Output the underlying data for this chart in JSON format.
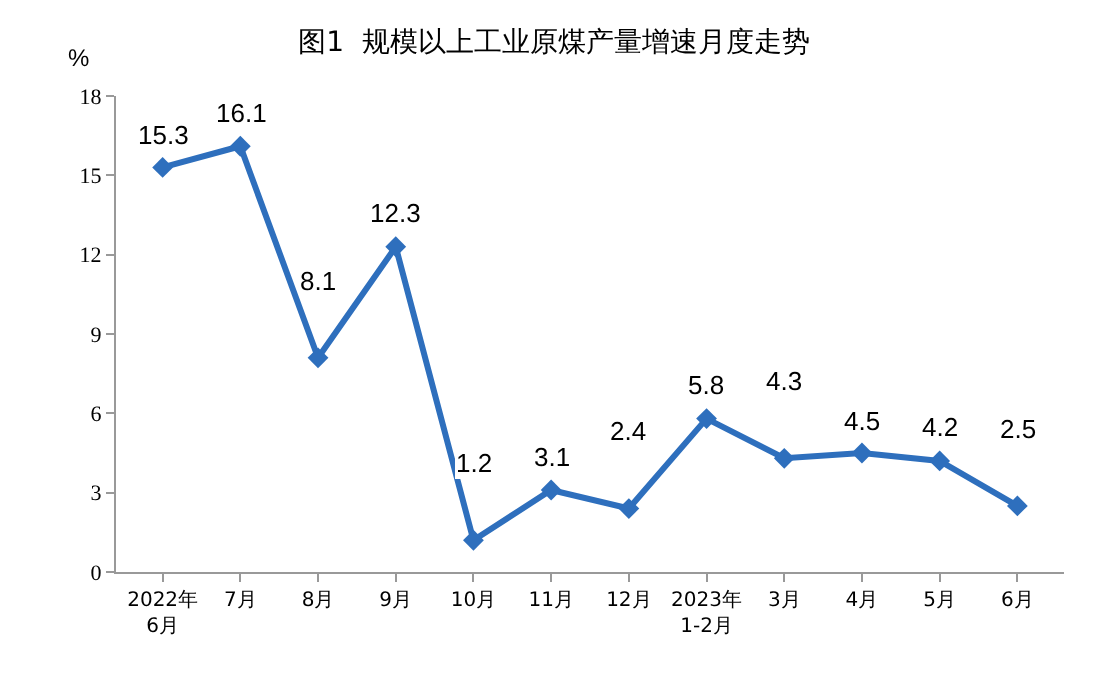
{
  "chart_data": {
    "type": "line",
    "title": "图1  规模以上工业原煤产量增速月度走势",
    "ylabel": "%",
    "categories": [
      "2022年\n6月",
      "7月",
      "8月",
      "9月",
      "10月",
      "11月",
      "12月",
      "2023年\n1-2月",
      "3月",
      "4月",
      "5月",
      "6月"
    ],
    "series": [
      {
        "color": "#2e6fbd",
        "values": [
          15.3,
          16.1,
          8.1,
          12.3,
          1.2,
          3.1,
          2.4,
          5.8,
          4.3,
          4.5,
          4.2,
          2.5
        ]
      }
    ],
    "ylim": [
      0,
      18
    ],
    "yticks": [
      0,
      3,
      6,
      9,
      12,
      15,
      18
    ],
    "grid": false,
    "marker": "diamond",
    "line_style": "solid",
    "data_labels": true
  }
}
